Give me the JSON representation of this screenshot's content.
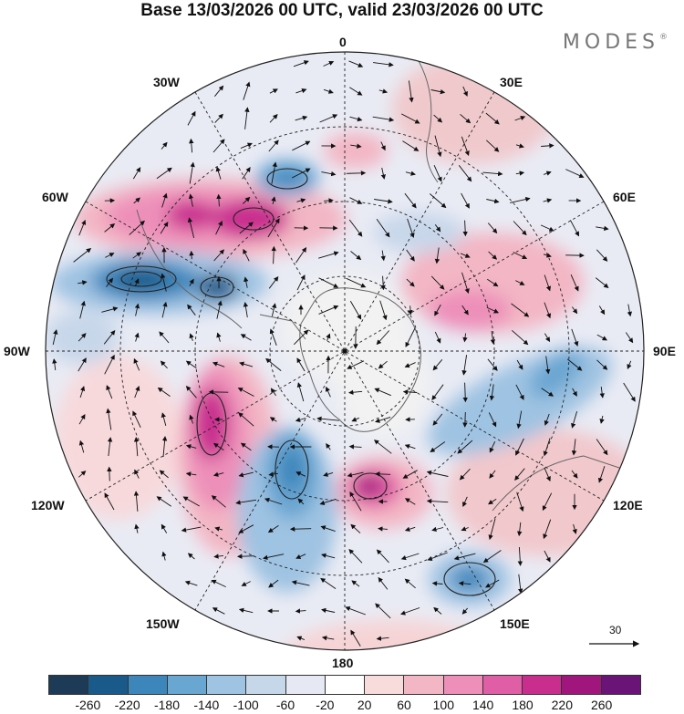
{
  "header": {
    "title": "Base 13/03/2026 00 UTC, valid 23/03/2026 00 UTC"
  },
  "brand": {
    "text": "MODES",
    "mark": "®"
  },
  "map": {
    "projection": "south-polar-stereographic",
    "longitude_labels": {
      "l0": "0",
      "l30e": "30E",
      "l60e": "60E",
      "l90e": "90E",
      "l120e": "120E",
      "l150e": "150E",
      "l180": "180",
      "l150w": "150W",
      "l120w": "120W",
      "l90w": "90W",
      "l60w": "60W",
      "l30w": "30W"
    },
    "reference_vector": {
      "value": "30"
    }
  },
  "colorbar": {
    "colors": [
      "#1d3b57",
      "#1a5a8a",
      "#3d86bc",
      "#6aa6d2",
      "#9fc3e2",
      "#c7d7ea",
      "#e6e9f3",
      "#ffffff",
      "#f8dcdc",
      "#f3b6c4",
      "#ed8fb9",
      "#e05ea6",
      "#c92e8f",
      "#a0167c",
      "#6a1478"
    ],
    "ticks": [
      "-260",
      "-220",
      "-180",
      "-140",
      "-100",
      "-60",
      "-20",
      "20",
      "60",
      "100",
      "140",
      "180",
      "220",
      "260"
    ]
  }
}
